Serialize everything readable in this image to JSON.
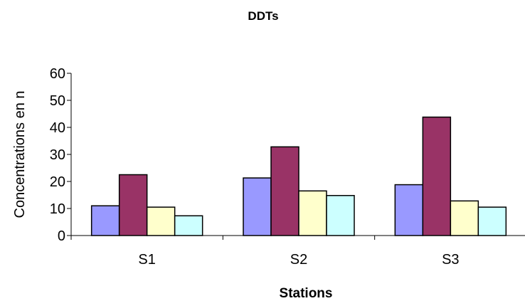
{
  "chart_data": {
    "type": "bar",
    "title": "DDTs",
    "xlabel": "Stations",
    "ylabel": "Concentrations en n",
    "categories": [
      "S1",
      "S2",
      "S3"
    ],
    "ylim": [
      0,
      60
    ],
    "yticks": [
      0,
      10,
      20,
      30,
      40,
      50,
      60
    ],
    "grid": false,
    "legend": "none",
    "series": [
      {
        "values": [
          11,
          21.3,
          18.8
        ],
        "color": "#9999ff"
      },
      {
        "values": [
          22.5,
          32.8,
          43.8
        ],
        "color": "#993366"
      },
      {
        "values": [
          10.5,
          16.5,
          12.8
        ],
        "color": "#ffffcc"
      },
      {
        "values": [
          7.3,
          14.8,
          10.5
        ],
        "color": "#ccffff"
      }
    ]
  }
}
